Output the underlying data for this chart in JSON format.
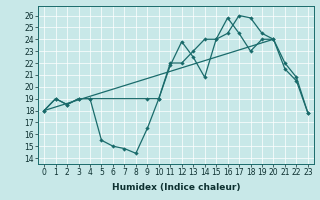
{
  "xlabel": "Humidex (Indice chaleur)",
  "bg_color": "#c8e8e8",
  "line_color": "#1a6b6b",
  "xlim": [
    -0.5,
    23.5
  ],
  "ylim": [
    13.5,
    26.8
  ],
  "yticks": [
    14,
    15,
    16,
    17,
    18,
    19,
    20,
    21,
    22,
    23,
    24,
    25,
    26
  ],
  "xticks": [
    0,
    1,
    2,
    3,
    4,
    5,
    6,
    7,
    8,
    9,
    10,
    11,
    12,
    13,
    14,
    15,
    16,
    17,
    18,
    19,
    20,
    21,
    22,
    23
  ],
  "line1_x": [
    0,
    1,
    2,
    3,
    4,
    5,
    6,
    7,
    8,
    9,
    10,
    11,
    12,
    13,
    14,
    15,
    16,
    17,
    18,
    19,
    20,
    21,
    22,
    23
  ],
  "line1_y": [
    18.0,
    19.0,
    18.5,
    19.0,
    19.0,
    15.5,
    15.0,
    14.8,
    14.4,
    16.5,
    19.0,
    21.8,
    23.8,
    22.5,
    20.8,
    24.0,
    24.5,
    26.0,
    25.8,
    24.5,
    24.0,
    21.5,
    20.5,
    17.8
  ],
  "line2_x": [
    0,
    20
  ],
  "line2_y": [
    18.0,
    24.0
  ],
  "line3_x": [
    0,
    1,
    2,
    3,
    4,
    9,
    10,
    11,
    12,
    13,
    14,
    15,
    16,
    17,
    18,
    19,
    20,
    21,
    22,
    23
  ],
  "line3_y": [
    18.0,
    19.0,
    18.5,
    19.0,
    19.0,
    19.0,
    19.0,
    22.0,
    22.0,
    23.0,
    24.0,
    24.0,
    25.8,
    24.5,
    23.0,
    24.0,
    24.0,
    22.0,
    20.8,
    17.8
  ],
  "tick_fontsize": 5.5,
  "xlabel_fontsize": 6.5
}
